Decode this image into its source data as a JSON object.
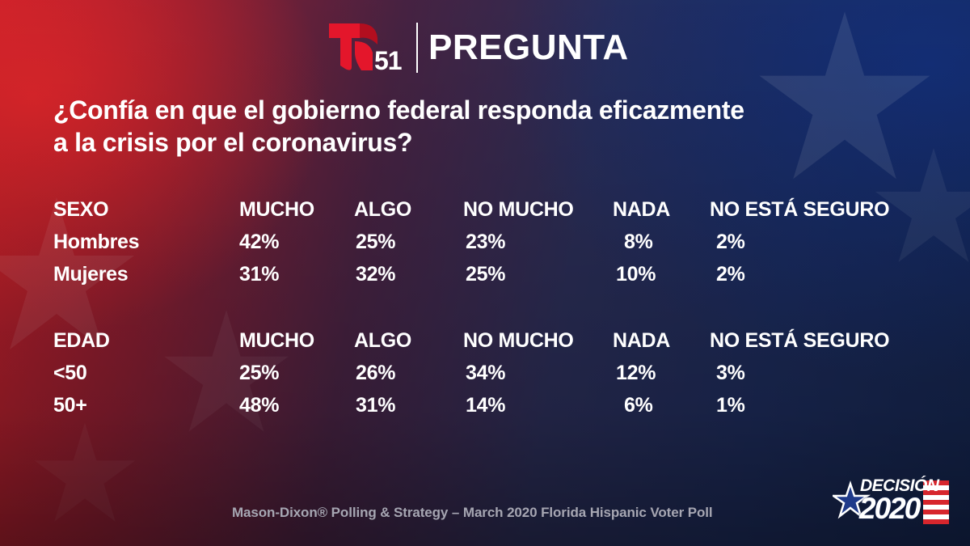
{
  "header": {
    "logo_number": "51",
    "title": "PREGUNTA"
  },
  "question": {
    "line1": "¿Confía en que el gobierno federal responda eficazmente",
    "line2": "a la crisis por el coronavirus?"
  },
  "chart_data": {
    "type": "table",
    "title": "¿Confía en que el gobierno federal responda eficazmente a la crisis por el coronavirus?",
    "tables": [
      {
        "group": "SEXO",
        "columns": [
          "MUCHO",
          "ALGO",
          "NO MUCHO",
          "NADA",
          "NO ESTÁ SEGURO"
        ],
        "rows": [
          {
            "label": "Hombres",
            "values": [
              "42%",
              "25%",
              "23%",
              "8%",
              "2%"
            ]
          },
          {
            "label": "Mujeres",
            "values": [
              "31%",
              "32%",
              "25%",
              "10%",
              "2%"
            ]
          }
        ]
      },
      {
        "group": "EDAD",
        "columns": [
          "MUCHO",
          "ALGO",
          "NO MUCHO",
          "NADA",
          "NO ESTÁ SEGURO"
        ],
        "rows": [
          {
            "label": "<50",
            "values": [
              "25%",
              "26%",
              "34%",
              "12%",
              "3%"
            ]
          },
          {
            "label": "50+",
            "values": [
              "48%",
              "31%",
              "14%",
              "6%",
              "1%"
            ]
          }
        ]
      }
    ]
  },
  "footer": {
    "source": "Mason-Dixon® Polling & Strategy – March 2020 Florida Hispanic Voter Poll",
    "brand_top": "DECISIÓN",
    "brand_year": "2020"
  },
  "colors": {
    "logo_red": "#e4162b",
    "text": "#ffffff",
    "source_gray": "#a6a6b2",
    "flag_red": "#d7262d",
    "flag_blue": "#1f3a8a"
  }
}
